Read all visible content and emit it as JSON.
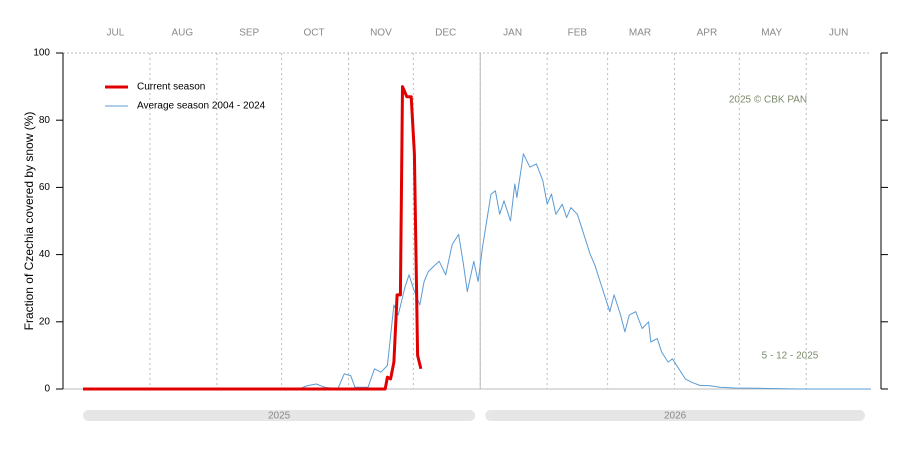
{
  "chart_data": {
    "type": "line",
    "y_label": "Fraction of  Czechia  covered by snow (%)",
    "xlim": [
      0,
      365
    ],
    "xticks": [
      {
        "value": 15,
        "label": "JUL"
      },
      {
        "value": 46,
        "label": "AUG"
      },
      {
        "value": 77,
        "label": "SEP"
      },
      {
        "value": 107,
        "label": "OCT"
      },
      {
        "value": 138,
        "label": "NOV"
      },
      {
        "value": 168,
        "label": "DEC"
      },
      {
        "value": 199,
        "label": "JAN"
      },
      {
        "value": 229,
        "label": "FEB"
      },
      {
        "value": 258,
        "label": "MAR"
      },
      {
        "value": 289,
        "label": "APR"
      },
      {
        "value": 319,
        "label": "MAY"
      },
      {
        "value": 350,
        "label": "JUN"
      }
    ],
    "month_starts": [
      31,
      62,
      92,
      123,
      153,
      184,
      215,
      243,
      274,
      304,
      335
    ],
    "year_boundary": 184,
    "years": [
      "2025",
      "2026"
    ],
    "ylim": [
      0,
      100
    ],
    "yticks": [
      0,
      20,
      40,
      60,
      80,
      100
    ],
    "annotations": [
      "2025  © CBK PAN",
      "5 - 12 - 2025"
    ],
    "series": [
      {
        "name": "Current season",
        "color": "#e00000",
        "x": [
          0,
          140,
          141,
          142.5,
          144,
          145.5,
          147,
          148,
          150,
          152,
          153.5,
          155,
          156.5
        ],
        "values": [
          0,
          0,
          3.5,
          3,
          8,
          28,
          28,
          90,
          87,
          87,
          70,
          10,
          6
        ]
      },
      {
        "name": "Average season 2004 - 2024",
        "color": "#5b9bd5",
        "x": [
          0,
          100,
          104,
          108,
          112,
          118,
          121,
          124,
          126,
          132,
          135,
          138,
          141,
          144,
          146,
          149,
          151,
          153,
          156,
          158,
          160,
          165,
          168,
          171,
          174,
          176,
          178,
          181,
          183,
          185,
          187,
          189,
          191,
          193,
          195,
          198,
          200,
          201,
          204,
          207,
          210,
          213,
          215,
          217,
          219,
          222,
          224,
          226,
          229,
          231,
          235,
          237,
          239,
          242,
          244,
          246,
          249,
          251,
          253,
          256,
          259,
          262,
          263,
          266,
          268,
          271,
          273,
          275,
          279,
          282,
          286,
          290,
          295,
          302,
          313,
          332,
          365
        ],
        "values": [
          0,
          0,
          1,
          1.5,
          0.5,
          0,
          4.5,
          4,
          0.5,
          0.5,
          6,
          5,
          7,
          25,
          22,
          30,
          34,
          30,
          25,
          32,
          35,
          38,
          34,
          43,
          46,
          38,
          29,
          38,
          32,
          42,
          50,
          58,
          59,
          52,
          56,
          50,
          61,
          57,
          70,
          66,
          67,
          62,
          55,
          58,
          52,
          55,
          51,
          54,
          52,
          48,
          40,
          37,
          33,
          27,
          23,
          28,
          22,
          17,
          22,
          23,
          18,
          20,
          14,
          15,
          11,
          8,
          9,
          7,
          3,
          2,
          1,
          1,
          0.5,
          0.3,
          0.2,
          0,
          0
        ]
      }
    ]
  }
}
